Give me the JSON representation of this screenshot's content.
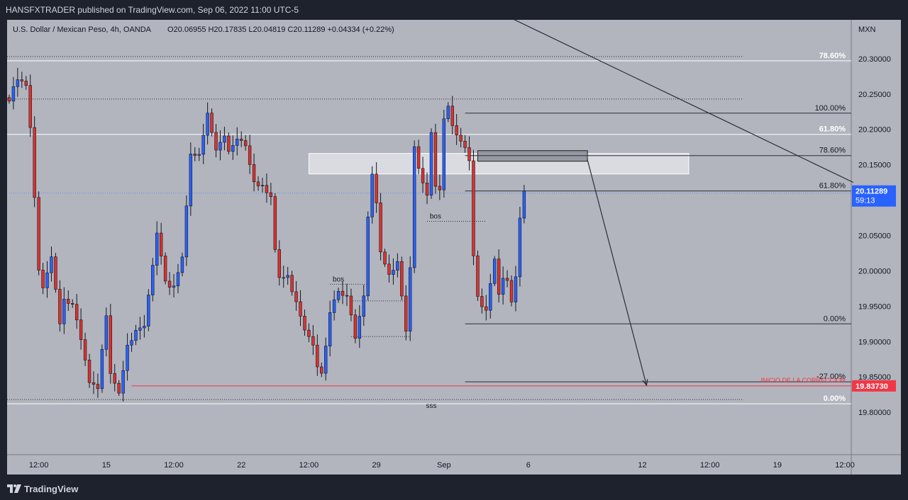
{
  "header": {
    "published_text": "HANSFXTRADER published on TradingView.com, Sep 06, 2022 11:00 UTC-5"
  },
  "footer": {
    "brand": "TradingView",
    "logo_icon": "tradingview-logo-icon"
  },
  "colors": {
    "background": "#b2b5be",
    "up_candle": "#2962ff",
    "down_candle": "#e0312b",
    "current_price_badge": "#2962ff",
    "target_badge": "#f23645",
    "target_line": "#f23645"
  },
  "chart_data": {
    "type": "candlestick",
    "legend": {
      "symbol": "U.S. Dollar / Mexican Peso, 4h, OANDA",
      "ohlc": "O20.06955  H20.17835  L20.04819  C20.11289  +0.04334 (+0.22%)"
    },
    "currency": "MXN",
    "ylim": [
      19.74,
      20.355
    ],
    "y_ticks": [
      "20.30000",
      "20.25000",
      "20.20000",
      "20.15000",
      "20.10000",
      "20.05000",
      "20.00000",
      "19.95000",
      "19.90000",
      "19.85000",
      "19.80000"
    ],
    "y_tick_values": [
      20.3,
      20.25,
      20.2,
      20.15,
      20.1,
      20.05,
      20.0,
      19.95,
      19.9,
      19.85,
      19.8
    ],
    "bars_total": 200,
    "x_ticks": [
      {
        "label": "12:00",
        "bar": 7
      },
      {
        "label": "15",
        "bar": 23
      },
      {
        "label": "12:00",
        "bar": 39
      },
      {
        "label": "22",
        "bar": 55
      },
      {
        "label": "12:00",
        "bar": 71
      },
      {
        "label": "29",
        "bar": 87
      },
      {
        "label": "Sep",
        "bar": 103
      },
      {
        "label": "6",
        "bar": 123
      },
      {
        "label": "12",
        "bar": 150
      },
      {
        "label": "12:00",
        "bar": 166
      },
      {
        "label": "19",
        "bar": 182
      },
      {
        "label": "12:00",
        "bar": 198
      }
    ],
    "anchors": [
      [
        0,
        20.24
      ],
      [
        2,
        20.27
      ],
      [
        4,
        20.26
      ],
      [
        5,
        20.2
      ],
      [
        6,
        20.1
      ],
      [
        7,
        20.0
      ],
      [
        8,
        19.98
      ],
      [
        10,
        20.02
      ],
      [
        12,
        19.93
      ],
      [
        13,
        19.96
      ],
      [
        15,
        19.95
      ],
      [
        17,
        19.9
      ],
      [
        19,
        19.84
      ],
      [
        21,
        19.83
      ],
      [
        23,
        19.94
      ],
      [
        24,
        19.86
      ],
      [
        26,
        19.83
      ],
      [
        28,
        19.9
      ],
      [
        30,
        19.91
      ],
      [
        32,
        19.92
      ],
      [
        35,
        20.05
      ],
      [
        37,
        19.98
      ],
      [
        39,
        19.98
      ],
      [
        41,
        20.02
      ],
      [
        43,
        20.17
      ],
      [
        45,
        20.16
      ],
      [
        47,
        20.22
      ],
      [
        49,
        20.17
      ],
      [
        51,
        20.19
      ],
      [
        52,
        20.17
      ],
      [
        54,
        20.19
      ],
      [
        56,
        20.18
      ],
      [
        58,
        20.13
      ],
      [
        60,
        20.12
      ],
      [
        62,
        20.1
      ],
      [
        63,
        20.03
      ],
      [
        64,
        19.99
      ],
      [
        66,
        19.99
      ],
      [
        68,
        19.96
      ],
      [
        70,
        19.92
      ],
      [
        72,
        19.9
      ],
      [
        73,
        19.87
      ],
      [
        74,
        19.86
      ],
      [
        75,
        19.89
      ],
      [
        76,
        19.94
      ],
      [
        78,
        19.97
      ],
      [
        80,
        19.96
      ],
      [
        82,
        19.91
      ],
      [
        84,
        19.97
      ],
      [
        85,
        20.08
      ],
      [
        86,
        20.14
      ],
      [
        87,
        20.1
      ],
      [
        88,
        20.03
      ],
      [
        90,
        19.99
      ],
      [
        92,
        20.01
      ],
      [
        94,
        19.91
      ],
      [
        95,
        20.0
      ],
      [
        96,
        20.17
      ],
      [
        97,
        20.15
      ],
      [
        98,
        20.13
      ],
      [
        99,
        20.11
      ],
      [
        100,
        20.2
      ],
      [
        101,
        20.12
      ],
      [
        102,
        20.12
      ],
      [
        103,
        20.22
      ],
      [
        104,
        20.23
      ],
      [
        105,
        20.2
      ],
      [
        106,
        20.19
      ],
      [
        107,
        20.18
      ],
      [
        108,
        20.17
      ],
      [
        109,
        20.15
      ],
      [
        110,
        20.02
      ],
      [
        111,
        19.96
      ],
      [
        113,
        19.95
      ],
      [
        115,
        20.02
      ],
      [
        116,
        19.97
      ],
      [
        117,
        19.99
      ],
      [
        118,
        19.99
      ],
      [
        119,
        19.95
      ],
      [
        120,
        19.99
      ],
      [
        121,
        20.07
      ],
      [
        122,
        20.11289
      ]
    ],
    "series": [
      {
        "name": "Fib 78.60%",
        "kind": "horizontal",
        "value": 20.297,
        "x0": 0,
        "x1": 200,
        "label": "78.60%",
        "style": "solid"
      },
      {
        "name": "Fib 100.00%",
        "kind": "horizontal",
        "value": 20.223,
        "x0": 108,
        "x1": 200,
        "label": "100.00%",
        "style": "solid"
      },
      {
        "name": "Fib 61.80%",
        "kind": "horizontal",
        "value": 20.193,
        "x0": 0,
        "x1": 200,
        "label": "61.80%",
        "style": "solid"
      },
      {
        "name": "Fib 78.60% (2)",
        "kind": "horizontal",
        "value": 20.163,
        "x0": 108,
        "x1": 200,
        "label": "78.60%",
        "style": "solid"
      },
      {
        "name": "Fib 61.80% (2)",
        "kind": "horizontal",
        "value": 20.113,
        "x0": 108,
        "x1": 200,
        "label": "61.80%",
        "style": "solid"
      },
      {
        "name": "Fib 0.00%",
        "kind": "horizontal",
        "value": 19.925,
        "x0": 108,
        "x1": 200,
        "label": "0.00%",
        "style": "solid"
      },
      {
        "name": "Fib -27.00%",
        "kind": "horizontal",
        "value": 19.843,
        "x0": 108,
        "x1": 200,
        "label": "-27.00%",
        "style": "solid"
      },
      {
        "name": "Fib 0.00% (2)",
        "kind": "horizontal",
        "value": 19.812,
        "x0": 0,
        "x1": 200,
        "label": "0.00%",
        "style": "solid"
      },
      {
        "name": "Dotted high",
        "kind": "horizontal",
        "value": 20.303,
        "x0": 0,
        "x1": 174,
        "style": "dotted"
      },
      {
        "name": "Dotted 100",
        "kind": "horizontal",
        "value": 20.243,
        "x0": 0,
        "x1": 174,
        "style": "dotted"
      },
      {
        "name": "Dotted low",
        "kind": "horizontal",
        "value": 19.818,
        "x0": 0,
        "x1": 174,
        "style": "dotted"
      }
    ],
    "target_line": {
      "value": 19.8373,
      "x0": 29,
      "x1": 200,
      "label": "INICIO DE LA CORRECCION",
      "price_label": "19.83730"
    },
    "current_price": {
      "value": 20.11289,
      "label": "20.11289",
      "countdown": "59:13"
    },
    "zones": [
      {
        "name": "supply-zone",
        "x0": 71,
        "x1": 161,
        "y0": 20.137,
        "y1": 20.166,
        "fill": "#e0e2e8",
        "stroke": "#ffffff"
      },
      {
        "name": "order-block",
        "x0": 111,
        "x1": 137,
        "y0": 20.155,
        "y1": 20.17,
        "fill": "#8a8d96",
        "stroke": "#222222"
      }
    ],
    "trendlines": [
      {
        "name": "descending-trendline",
        "x0": 118,
        "y0": 20.36,
        "x1": 200,
        "y1": 20.125
      },
      {
        "name": "projection-arrow",
        "x0": 137,
        "y0": 20.157,
        "x1": 151,
        "y1": 19.838,
        "arrow": true
      }
    ],
    "annotations": [
      {
        "text": "bos",
        "bar": 78,
        "value": 19.985,
        "line_x0": 76,
        "line_x1": 85
      },
      {
        "text": "bos",
        "bar": 101,
        "value": 20.074,
        "line_x0": 99,
        "line_x1": 113
      },
      {
        "text": "sss",
        "bar": 100,
        "value": 19.806
      }
    ],
    "guide_lines": [
      {
        "value": 19.9575,
        "x0": 81,
        "x1": 95
      },
      {
        "value": 19.907,
        "x0": 81,
        "x1": 95
      },
      {
        "value": 20.11,
        "x0": 0,
        "x1": 200
      }
    ]
  }
}
